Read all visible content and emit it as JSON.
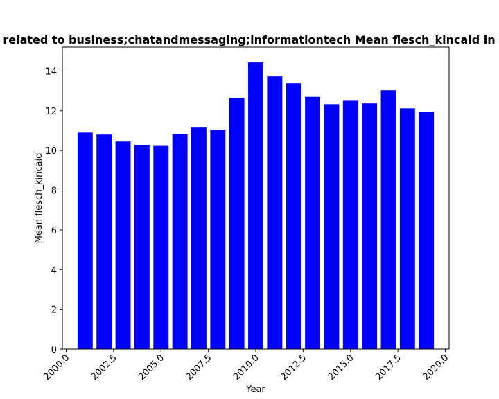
{
  "chart_data": {
    "type": "bar",
    "title": "related to business;chatandmessaging;informationtech Mean flesch_kincaid in p",
    "xlabel": "Year",
    "ylabel": "Mean flesch_kincaid",
    "xlim": [
      1999.8,
      2020.2
    ],
    "ylim": [
      0,
      15.2
    ],
    "x": [
      2001,
      2002,
      2003,
      2004,
      2005,
      2006,
      2007,
      2008,
      2009,
      2010,
      2011,
      2012,
      2013,
      2014,
      2015,
      2016,
      2017,
      2018,
      2019
    ],
    "values": [
      10.9,
      10.8,
      10.45,
      10.28,
      10.23,
      10.83,
      11.15,
      11.05,
      12.65,
      14.43,
      13.73,
      13.38,
      12.7,
      12.33,
      12.5,
      12.37,
      13.03,
      12.12,
      11.95
    ],
    "color": "#0000ff",
    "xticks": [
      "2000.0",
      "2002.5",
      "2005.0",
      "2007.5",
      "2010.0",
      "2012.5",
      "2015.0",
      "2017.5",
      "2020.0"
    ],
    "yticks": [
      "0",
      "2",
      "4",
      "6",
      "8",
      "10",
      "12",
      "14"
    ],
    "grid": false,
    "legend": "none"
  }
}
